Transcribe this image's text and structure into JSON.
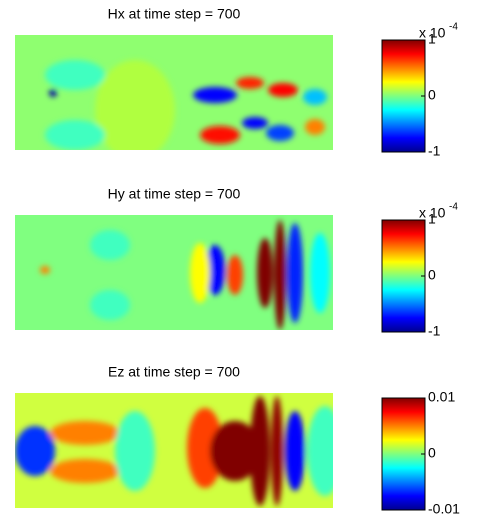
{
  "chart_data": [
    {
      "type": "heatmap",
      "title": "Hx at time step = 700",
      "clim": [
        -1,
        1
      ],
      "cticks": [
        -1,
        0,
        1
      ],
      "colorbar_scale": {
        "base": "x 10",
        "exponent": "-4"
      }
    },
    {
      "type": "heatmap",
      "title": "Hy at time step = 700",
      "clim": [
        -1,
        1
      ],
      "cticks": [
        -1,
        0,
        1
      ],
      "colorbar_scale": {
        "base": "x 10",
        "exponent": "-4"
      }
    },
    {
      "type": "heatmap",
      "title": "Ez at time step  = 700",
      "clim": [
        -0.01,
        0.01
      ],
      "cticks": [
        -0.01,
        0,
        0.01
      ]
    }
  ]
}
